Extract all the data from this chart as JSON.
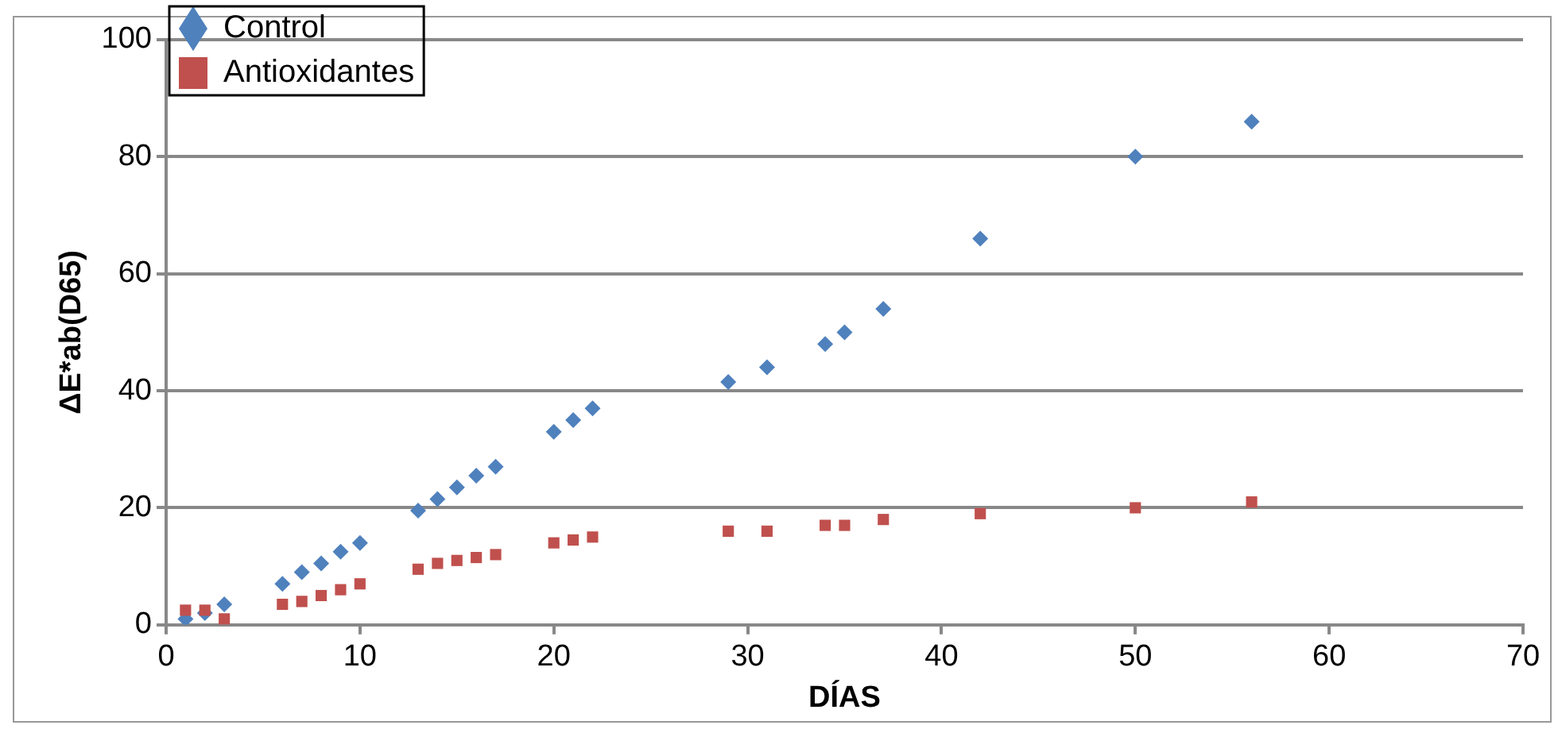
{
  "chart_data": {
    "type": "scatter",
    "xlabel": "DÍAS",
    "ylabel": "ΔE*ab(D65)",
    "xlim": [
      0,
      70
    ],
    "xticks": [
      0,
      10,
      20,
      30,
      40,
      50,
      60,
      70
    ],
    "ylim": [
      0,
      100
    ],
    "yticks": [
      0,
      20,
      40,
      60,
      80,
      100
    ],
    "grid": "y",
    "legend": "top left",
    "series": [
      {
        "name": "Control",
        "color": "#4f81bd",
        "marker": "diamond",
        "x": [
          1,
          2,
          3,
          6,
          7,
          8,
          9,
          10,
          13,
          14,
          15,
          16,
          17,
          20,
          21,
          22,
          29,
          31,
          34,
          35,
          37,
          42,
          50,
          56
        ],
        "values": [
          1,
          2,
          3.5,
          7,
          9,
          10.5,
          12.5,
          14,
          19.5,
          21.5,
          23.5,
          25.5,
          27,
          33,
          35,
          37,
          41.5,
          44,
          48,
          50,
          54,
          66,
          80,
          86
        ]
      },
      {
        "name": "Antioxidantes",
        "color": "#c0504d",
        "marker": "square",
        "x": [
          1,
          2,
          3,
          6,
          7,
          8,
          9,
          10,
          13,
          14,
          15,
          16,
          17,
          20,
          21,
          22,
          29,
          31,
          34,
          35,
          37,
          42,
          50,
          56
        ],
        "values": [
          2.5,
          2.5,
          1,
          3.5,
          4,
          5,
          6,
          7,
          9.5,
          10.5,
          11,
          11.5,
          12,
          14,
          14.5,
          15,
          16,
          16,
          17,
          17,
          18,
          19,
          20,
          21
        ]
      }
    ]
  }
}
